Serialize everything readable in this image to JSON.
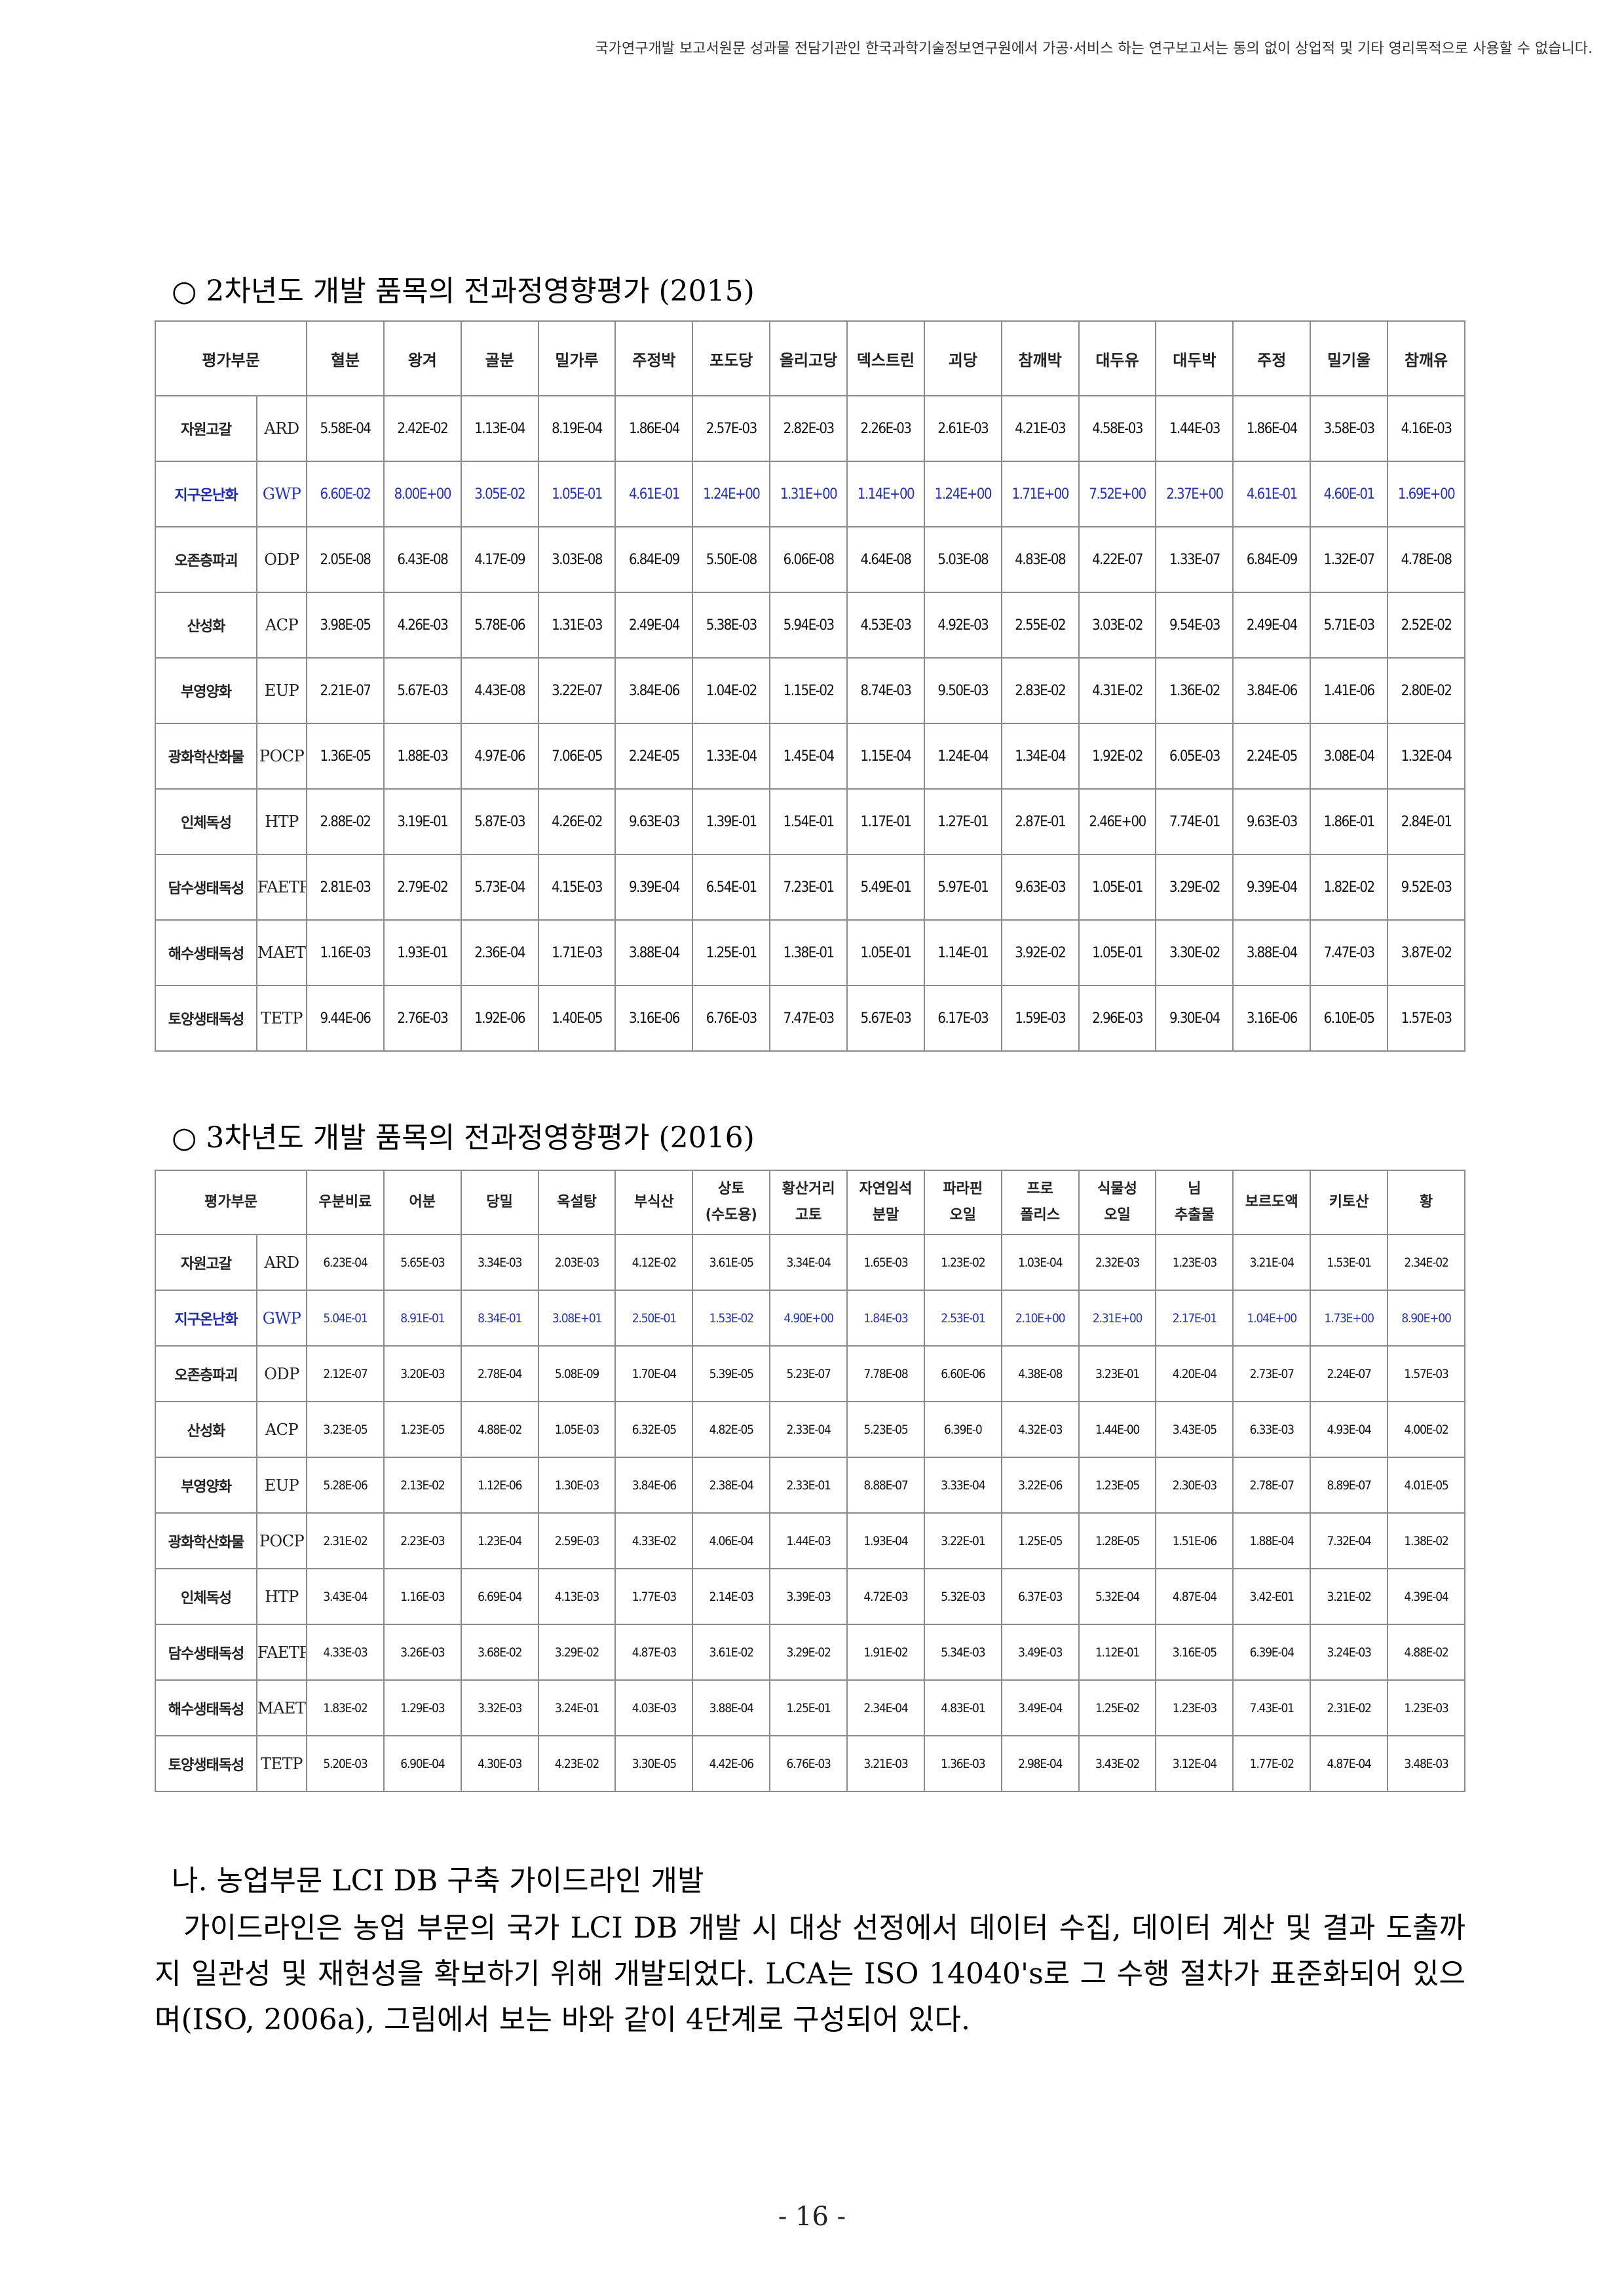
{
  "header_note": "국가연구개발 보고서원문 성과물 전담기관인 한국과학기술정보연구원에서 가공·서비스 하는 연구보고서는 동의 없이 상업적 및 기타 영리목적으로 사용할 수 없습니다.",
  "section1": {
    "title": "○ 2차년도 개발 품목의 전과정영향평가 (2015)",
    "eval_header": "평가부문",
    "columns": [
      "혈분",
      "왕겨",
      "골분",
      "밀가루",
      "주정박",
      "포도당",
      "올리고당",
      "덱스트린",
      "괴당",
      "참깨박",
      "대두유",
      "대두박",
      "주정",
      "밀기울",
      "참깨유"
    ],
    "rows": [
      {
        "cat": "자원고갈",
        "code": "ARD",
        "values": [
          "5.58E-04",
          "2.42E-02",
          "1.13E-04",
          "8.19E-04",
          "1.86E-04",
          "2.57E-03",
          "2.82E-03",
          "2.26E-03",
          "2.61E-03",
          "4.21E-03",
          "4.58E-03",
          "1.44E-03",
          "1.86E-04",
          "3.58E-03",
          "4.16E-03"
        ]
      },
      {
        "cat": "지구온난화",
        "code": "GWP",
        "values": [
          "6.60E-02",
          "8.00E+00",
          "3.05E-02",
          "1.05E-01",
          "4.61E-01",
          "1.24E+00",
          "1.31E+00",
          "1.14E+00",
          "1.24E+00",
          "1.71E+00",
          "7.52E+00",
          "2.37E+00",
          "4.61E-01",
          "4.60E-01",
          "1.69E+00"
        ]
      },
      {
        "cat": "오존층파괴",
        "code": "ODP",
        "values": [
          "2.05E-08",
          "6.43E-08",
          "4.17E-09",
          "3.03E-08",
          "6.84E-09",
          "5.50E-08",
          "6.06E-08",
          "4.64E-08",
          "5.03E-08",
          "4.83E-08",
          "4.22E-07",
          "1.33E-07",
          "6.84E-09",
          "1.32E-07",
          "4.78E-08"
        ]
      },
      {
        "cat": "산성화",
        "code": "ACP",
        "values": [
          "3.98E-05",
          "4.26E-03",
          "5.78E-06",
          "1.31E-03",
          "2.49E-04",
          "5.38E-03",
          "5.94E-03",
          "4.53E-03",
          "4.92E-03",
          "2.55E-02",
          "3.03E-02",
          "9.54E-03",
          "2.49E-04",
          "5.71E-03",
          "2.52E-02"
        ]
      },
      {
        "cat": "부영양화",
        "code": "EUP",
        "values": [
          "2.21E-07",
          "5.67E-03",
          "4.43E-08",
          "3.22E-07",
          "3.84E-06",
          "1.04E-02",
          "1.15E-02",
          "8.74E-03",
          "9.50E-03",
          "2.83E-02",
          "4.31E-02",
          "1.36E-02",
          "3.84E-06",
          "1.41E-06",
          "2.80E-02"
        ]
      },
      {
        "cat": "광화학산화물",
        "code": "POCP",
        "values": [
          "1.36E-05",
          "1.88E-03",
          "4.97E-06",
          "7.06E-05",
          "2.24E-05",
          "1.33E-04",
          "1.45E-04",
          "1.15E-04",
          "1.24E-04",
          "1.34E-04",
          "1.92E-02",
          "6.05E-03",
          "2.24E-05",
          "3.08E-04",
          "1.32E-04"
        ]
      },
      {
        "cat": "인체독성",
        "code": "HTP",
        "values": [
          "2.88E-02",
          "3.19E-01",
          "5.87E-03",
          "4.26E-02",
          "9.63E-03",
          "1.39E-01",
          "1.54E-01",
          "1.17E-01",
          "1.27E-01",
          "2.87E-01",
          "2.46E+00",
          "7.74E-01",
          "9.63E-03",
          "1.86E-01",
          "2.84E-01"
        ]
      },
      {
        "cat": "담수생태독성",
        "code": "FAETP",
        "values": [
          "2.81E-03",
          "2.79E-02",
          "5.73E-04",
          "4.15E-03",
          "9.39E-04",
          "6.54E-01",
          "7.23E-01",
          "5.49E-01",
          "5.97E-01",
          "9.63E-03",
          "1.05E-01",
          "3.29E-02",
          "9.39E-04",
          "1.82E-02",
          "9.52E-03"
        ]
      },
      {
        "cat": "해수생태독성",
        "code": "MAETP",
        "values": [
          "1.16E-03",
          "1.93E-01",
          "2.36E-04",
          "1.71E-03",
          "3.88E-04",
          "1.25E-01",
          "1.38E-01",
          "1.05E-01",
          "1.14E-01",
          "3.92E-02",
          "1.05E-01",
          "3.30E-02",
          "3.88E-04",
          "7.47E-03",
          "3.87E-02"
        ]
      },
      {
        "cat": "토양생태독성",
        "code": "TETP",
        "values": [
          "9.44E-06",
          "2.76E-03",
          "1.92E-06",
          "1.40E-05",
          "3.16E-06",
          "6.76E-03",
          "7.47E-03",
          "5.67E-03",
          "6.17E-03",
          "1.59E-03",
          "2.96E-03",
          "9.30E-04",
          "3.16E-06",
          "6.10E-05",
          "1.57E-03"
        ]
      }
    ]
  },
  "section2": {
    "title": "○ 3차년도 개발 품목의 전과정영향평가 (2016)",
    "eval_header": "평가부문",
    "columns": [
      [
        "우분비료"
      ],
      [
        "어분"
      ],
      [
        "당밀"
      ],
      [
        "옥설탕"
      ],
      [
        "부식산"
      ],
      [
        "상토",
        "(수도용)"
      ],
      [
        "황산거리",
        "고토"
      ],
      [
        "자연임석",
        "분말"
      ],
      [
        "파라핀",
        "오일"
      ],
      [
        "프로",
        "폴리스"
      ],
      [
        "식물성",
        "오일"
      ],
      [
        "님",
        "추출물"
      ],
      [
        "보르도액"
      ],
      [
        "키토산"
      ],
      [
        "황"
      ]
    ],
    "rows": [
      {
        "cat": "자원고갈",
        "code": "ARD",
        "values": [
          "6.23E-04",
          "5.65E-03",
          "3.34E-03",
          "2.03E-03",
          "4.12E-02",
          "3.61E-05",
          "3.34E-04",
          "1.65E-03",
          "1.23E-02",
          "1.03E-04",
          "2.32E-03",
          "1.23E-03",
          "3.21E-04",
          "1.53E-01",
          "2.34E-02"
        ]
      },
      {
        "cat": "지구온난화",
        "code": "GWP",
        "values": [
          "5.04E-01",
          "8.91E-01",
          "8.34E-01",
          "3.08E+01",
          "2.50E-01",
          "1.53E-02",
          "4.90E+00",
          "1.84E-03",
          "2.53E-01",
          "2.10E+00",
          "2.31E+00",
          "2.17E-01",
          "1.04E+00",
          "1.73E+00",
          "8.90E+00"
        ]
      },
      {
        "cat": "오존층파괴",
        "code": "ODP",
        "values": [
          "2.12E-07",
          "3.20E-03",
          "2.78E-04",
          "5.08E-09",
          "1.70E-04",
          "5.39E-05",
          "5.23E-07",
          "7.78E-08",
          "6.60E-06",
          "4.38E-08",
          "3.23E-01",
          "4.20E-04",
          "2.73E-07",
          "2.24E-07",
          "1.57E-03"
        ]
      },
      {
        "cat": "산성화",
        "code": "ACP",
        "values": [
          "3.23E-05",
          "1.23E-05",
          "4.88E-02",
          "1.05E-03",
          "6.32E-05",
          "4.82E-05",
          "2.33E-04",
          "5.23E-05",
          "6.39E-0",
          "4.32E-03",
          "1.44E-00",
          "3.43E-05",
          "6.33E-03",
          "4.93E-04",
          "4.00E-02"
        ]
      },
      {
        "cat": "부영양화",
        "code": "EUP",
        "values": [
          "5.28E-06",
          "2.13E-02",
          "1.12E-06",
          "1.30E-03",
          "3.84E-06",
          "2.38E-04",
          "2.33E-01",
          "8.88E-07",
          "3.33E-04",
          "3.22E-06",
          "1.23E-05",
          "2.30E-03",
          "2.78E-07",
          "8.89E-07",
          "4.01E-05"
        ]
      },
      {
        "cat": "광화학산화물",
        "code": "POCP",
        "values": [
          "2.31E-02",
          "2.23E-03",
          "1.23E-04",
          "2.59E-03",
          "4.33E-02",
          "4.06E-04",
          "1.44E-03",
          "1.93E-04",
          "3.22E-01",
          "1.25E-05",
          "1.28E-05",
          "1.51E-06",
          "1.88E-04",
          "7.32E-04",
          "1.38E-02"
        ]
      },
      {
        "cat": "인체독성",
        "code": "HTP",
        "values": [
          "3.43E-04",
          "1.16E-03",
          "6.69E-04",
          "4.13E-03",
          "1.77E-03",
          "2.14E-03",
          "3.39E-03",
          "4.72E-03",
          "5.32E-03",
          "6.37E-03",
          "5.32E-04",
          "4.87E-04",
          "3.42-E01",
          "3.21E-02",
          "4.39E-04"
        ]
      },
      {
        "cat": "담수생태독성",
        "code": "FAETP",
        "values": [
          "4.33E-03",
          "3.26E-03",
          "3.68E-02",
          "3.29E-02",
          "4.87E-03",
          "3.61E-02",
          "3.29E-02",
          "1.91E-02",
          "5.34E-03",
          "3.49E-03",
          "1.12E-01",
          "3.16E-05",
          "6.39E-04",
          "3.24E-03",
          "4.88E-02"
        ]
      },
      {
        "cat": "해수생태독성",
        "code": "MAETP",
        "values": [
          "1.83E-02",
          "1.29E-03",
          "3.32E-03",
          "3.24E-01",
          "4.03E-03",
          "3.88E-04",
          "1.25E-01",
          "2.34E-04",
          "4.83E-01",
          "3.49E-04",
          "1.25E-02",
          "1.23E-03",
          "7.43E-01",
          "2.31E-02",
          "1.23E-03"
        ]
      },
      {
        "cat": "토양생태독성",
        "code": "TETP",
        "values": [
          "5.20E-03",
          "6.90E-04",
          "4.30E-03",
          "4.23E-02",
          "3.30E-05",
          "4.42E-06",
          "6.76E-03",
          "3.21E-03",
          "1.36E-03",
          "2.98E-04",
          "3.43E-02",
          "3.12E-04",
          "1.77E-02",
          "4.87E-04",
          "3.48E-03"
        ]
      }
    ]
  },
  "subheading": "나. 농업부문 LCI DB 구축 가이드라인 개발",
  "paragraph": "가이드라인은 농업 부문의 국가 LCI DB 개발 시 대상 선정에서 데이터 수집, 데이터 계산 및 결과 도출까지 일관성 및 재현성을 확보하기 위해 개발되었다. LCA는 ISO 14040's로 그 수행 절차가 표준화되어 있으며(ISO, 2006a), 그림에서 보는 바와 같이 4단계로 구성되어 있다.",
  "page_number": "- 16 -"
}
